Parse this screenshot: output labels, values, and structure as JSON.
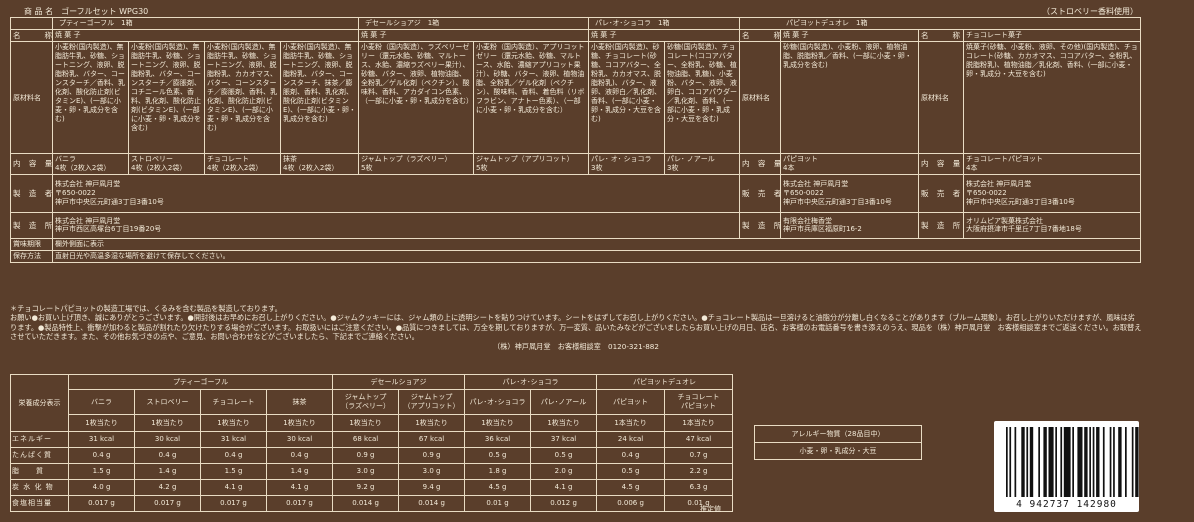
{
  "product_title": "商 品 名　ゴーフルセット WPG30",
  "flavor_note": "（ストロベリー香料使用）",
  "main": {
    "products": {
      "p1": "プティーゴーフル　1箱",
      "p2": "デセールショアジ　1箱",
      "p3": "パレ･オ･ショコラ　1箱",
      "p4": "パピヨットデュオレ　1箱"
    },
    "labels": {
      "name": "名　　称",
      "ingredients": "原材料名",
      "content": "内 容 量",
      "maker": "製 造 者",
      "factory": "製 造 所",
      "seller": "販 売 者",
      "expiry": "賞味期限",
      "storage": "保存方法"
    },
    "names": {
      "yakigashi": "焼 菓 子",
      "choco_kashi": "チョコレート菓子"
    },
    "ingredients": {
      "c1": "小麦粉(国内製造)、無脂肪牛乳、砂糖、ショートニング、液卵、脱脂粉乳、バター、コーンスターチ／香料、乳化剤、酸化防止剤(ビタミンE)、(一部に小麦・卵・乳成分を含む)",
      "c2": "小麦粉(国内製造)、無脂肪牛乳、砂糖、ショートニング、液卵、脱脂粉乳、バター、コーンスターチ／膨脹剤、コチニール色素、香料、乳化剤、酸化防止剤(ビタミンE)、(一部に小麦・卵・乳成分を含む)",
      "c3": "小麦粉(国内製造)、無脂肪牛乳、砂糖、ショートニング、液卵、脱脂粉乳、カカオマス、バター、コーンスターチ／膨脹剤、香料、乳化剤、酸化防止剤(ビタミンE)、(一部に小麦・卵・乳成分を含む)",
      "c4": "小麦粉(国内製造)、無脂肪牛乳、砂糖、ショートニング、液卵、脱脂粉乳、バター、コーンスターチ、抹茶／膨脹剤、香料、乳化剤、酸化防止剤(ビタミンE)、(一部に小麦・卵・乳成分を含む)",
      "c5": "小麦粉（国内製造）、ラズベリーゼリー（還元水飴、砂糖、マルトース、水飴、濃縮ラズベリー果汁）、砂糖、バター、液卵、植物油脂、全粉乳／ゲル化剤（ペクチン）、酸味料、香料、アカダイコン色素、（一部に小麦・卵・乳成分を含む）",
      "c6": "小麦粉（国内製造）、アプリコットゼリー（還元水飴、砂糖、マルトース、水飴、濃縮アプリコット果汁）、砂糖、バター、液卵、植物油脂、全粉乳／ゲル化剤（ペクチン）、酸味料、香料、着色料（リボフラビン、アナトー色素）、（一部に小麦・卵・乳成分を含む）",
      "c7": "小麦粉(国内製造)、砂糖、チョコレート(砂糖、ココアバター、全粉乳、カカオマス、脱脂粉乳)、バター、液卵、液卵白／乳化剤、香料、(一部に小麦・卵・乳成分・大豆を含む)",
      "c8": "砂糖(国内製造)、チョコレート(ココアバター、全粉乳、砂糖、植物油脂、乳糖)、小麦粉、バター、液卵、液卵白、ココアパウダー／乳化剤、香料、(一部に小麦・卵・乳成分・大豆を含む)",
      "c9": "砂糖(国内製造)、小麦粉、液卵、植物油脂、脱脂粉乳／香料、(一部に小麦・卵・乳成分を含む)",
      "c10": "焼菓子(砂糖、小麦粉、液卵、その他)(国内製造)、チョコレート(砂糖、カカオマス、ココアバター、全粉乳、脱脂粉乳)、植物油脂／乳化剤、香料、(一部に小麦・卵・乳成分・大豆を含む)"
    },
    "contents": {
      "c1": "バニラ\n4枚（2枚入2袋）",
      "c2": "ストロベリー\n4枚（2枚入2袋）",
      "c3": "チョコレート\n4枚（2枚入2袋）",
      "c4": "抹茶\n4枚（2枚入2袋）",
      "c5": "ジャムトップ（ラズベリー）\n5枚",
      "c6": "ジャムトップ（アプリコット）\n5枚",
      "c7": "パレ･ オ･ ショコラ\n3枚",
      "c8": "パレ･ ノアール\n3枚",
      "c9": "パピヨット\n4本",
      "c10": "チョコレートパピヨット\n4本"
    },
    "maker": {
      "p123": "株式会社 神戸凮月堂\n〒650-0022\n神戸市中央区元町通3丁目3番10号"
    },
    "factory": {
      "p123": "株式会社 神戸凮月堂\n神戸市西区高塚台6丁目19番20号",
      "p4a": "有限会社梅香堂\n神戸市兵庫区福原町16-2",
      "p4b": "オリムピア製菓株式会社\n大阪府摂津市千里丘7丁目7番地18号"
    },
    "seller": {
      "p4a": "株式会社 神戸凮月堂\n〒650-0022\n神戸市中央区元町通3丁目3番10号",
      "p4b": "株式会社 神戸凮月堂\n〒650-0022\n神戸市中央区元町通3丁目3番10号"
    },
    "expiry": "欄外側面に表示",
    "storage": "直射日光や高温多湿な場所を避けて保存してください。"
  },
  "notes": {
    "line1": "＊チョコレートパピヨットの製造工場では、くるみを含む製品を製造しております。",
    "line2": "お願い●お買い上げ頂き、誠にありがとうございます。●開封後はお早めにお召し上がりください。●ジャムクッキーには、ジャム類の上に透明シートを貼りつけています。シートをはずしてお召し上がりください。●チョコレート製品は一旦溶けると油脂分が分離し白くなることがあります（ブルーム現象）。お召し上がりいただけますが、風味は劣ります。●製品特性上、衝撃が加わると製品が割れたり欠けたりする場合がございます。お取扱いにはご注意ください。●品質につきましては、万全を期しておりますが、万一変質、品いたみなどがございましたらお買い上げの月日、店名、お客様のお電話番号を書き添えのうえ、現品を（株）神戸凮月堂　お客様相談室までご返送ください。お取替えさせていただきます。また、その他お気づきの点や、ご意見、お問い合わせなどがございましたら、下記までご連絡ください。",
    "contact": "（株）神戸凮月堂　お客様相談室　0120-321-882"
  },
  "nutrition": {
    "title": "栄養成分表示",
    "groups": [
      "プティーゴーフル",
      "デセールショアジ",
      "パレ･オ･ショコラ",
      "パピヨットデュオレ"
    ],
    "columns": [
      {
        "name": "バニラ",
        "unit": "1枚当たり"
      },
      {
        "name": "ストロベリー",
        "unit": "1枚当たり"
      },
      {
        "name": "チョコレート",
        "unit": "1枚当たり"
      },
      {
        "name": "抹茶",
        "unit": "1枚当たり"
      },
      {
        "name": "ジャムトップ\n（ラズベリー）",
        "unit": "1枚当たり"
      },
      {
        "name": "ジャムトップ\n（アプリコット）",
        "unit": "1枚当たり"
      },
      {
        "name": "パレ･オ･ショコラ",
        "unit": "1枚当たり"
      },
      {
        "name": "パレ･ノアール",
        "unit": "1枚当たり"
      },
      {
        "name": "パピヨット",
        "unit": "1本当たり"
      },
      {
        "name": "チョコレート\nパピヨット",
        "unit": "1本当たり"
      }
    ],
    "rows": [
      {
        "label": "エネルギー",
        "values": [
          "31 kcal",
          "30 kcal",
          "31 kcal",
          "30 kcal",
          "68 kcal",
          "67 kcal",
          "36 kcal",
          "37 kcal",
          "24 kcal",
          "47 kcal"
        ]
      },
      {
        "label": "たんぱく質",
        "values": [
          "0.4 g",
          "0.4 g",
          "0.4 g",
          "0.4 g",
          "0.9 g",
          "0.9 g",
          "0.5 g",
          "0.5 g",
          "0.4 g",
          "0.7 g"
        ]
      },
      {
        "label": "脂　　質",
        "values": [
          "1.5 g",
          "1.4 g",
          "1.5 g",
          "1.4 g",
          "3.0 g",
          "3.0 g",
          "1.8 g",
          "2.0 g",
          "0.5 g",
          "2.2 g"
        ]
      },
      {
        "label": "炭 水 化 物",
        "values": [
          "4.0 g",
          "4.2 g",
          "4.1 g",
          "4.1 g",
          "9.2 g",
          "9.4 g",
          "4.5 g",
          "4.1 g",
          "4.5 g",
          "6.3 g"
        ]
      },
      {
        "label": "食塩相当量",
        "values": [
          "0.017 g",
          "0.017 g",
          "0.017 g",
          "0.017 g",
          "0.014 g",
          "0.014 g",
          "0.01 g",
          "0.012 g",
          "0.006 g",
          "0.01 g"
        ]
      }
    ],
    "estimate": "推定値"
  },
  "allergen": {
    "title": "アレルギー物質（28品目中）",
    "items": "小麦・卵・乳成分・大豆"
  },
  "barcode": {
    "number": "4 942737 142980"
  }
}
